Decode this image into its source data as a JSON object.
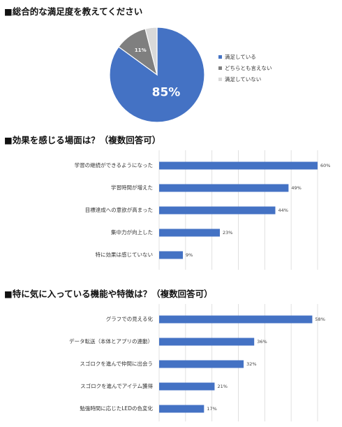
{
  "colors": {
    "primary": "#4472C4",
    "secondary": "#7F7F7F",
    "tertiary": "#D9D9D9",
    "grid": "#D9D9D9"
  },
  "chart_data": [
    {
      "type": "pie",
      "title": "■総合的な満足度を教えてください",
      "slices": [
        {
          "label": "満足している",
          "value": 85,
          "display": "85%",
          "color": "#4472C4"
        },
        {
          "label": "どちらとも言えない",
          "value": 11,
          "display": "11%",
          "color": "#7F7F7F"
        },
        {
          "label": "満足していない",
          "value": 4,
          "display": "",
          "color": "#D9D9D9"
        }
      ],
      "legend_position": "right"
    },
    {
      "type": "bar",
      "orientation": "horizontal",
      "title": "■効果を感じる場面は？（複数回答可）",
      "categories": [
        "学習の継続ができるようになった",
        "学習時間が増えた",
        "目標達成への意欲が高まった",
        "集中力が向上した",
        "特に効果は感じていない"
      ],
      "values": [
        60,
        49,
        44,
        23,
        9
      ],
      "value_labels": [
        "60%",
        "49%",
        "44%",
        "23%",
        "9%"
      ],
      "xlim": [
        0,
        60
      ],
      "grid": true
    },
    {
      "type": "bar",
      "orientation": "horizontal",
      "title": "■特に気に入っている機能や特徴は？（複数回答可）",
      "categories": [
        "グラフでの見える化",
        "データ転送（本体とアプリの連動）",
        "スゴロクを進んで仲間に出会う",
        "スゴロクを進んでアイテム獲得",
        "勉強時間に応じたLEDの色変化"
      ],
      "values": [
        58,
        36,
        32,
        21,
        17
      ],
      "value_labels": [
        "58%",
        "36%",
        "32%",
        "21%",
        "17%"
      ],
      "xlim": [
        0,
        60
      ],
      "grid": true
    }
  ]
}
